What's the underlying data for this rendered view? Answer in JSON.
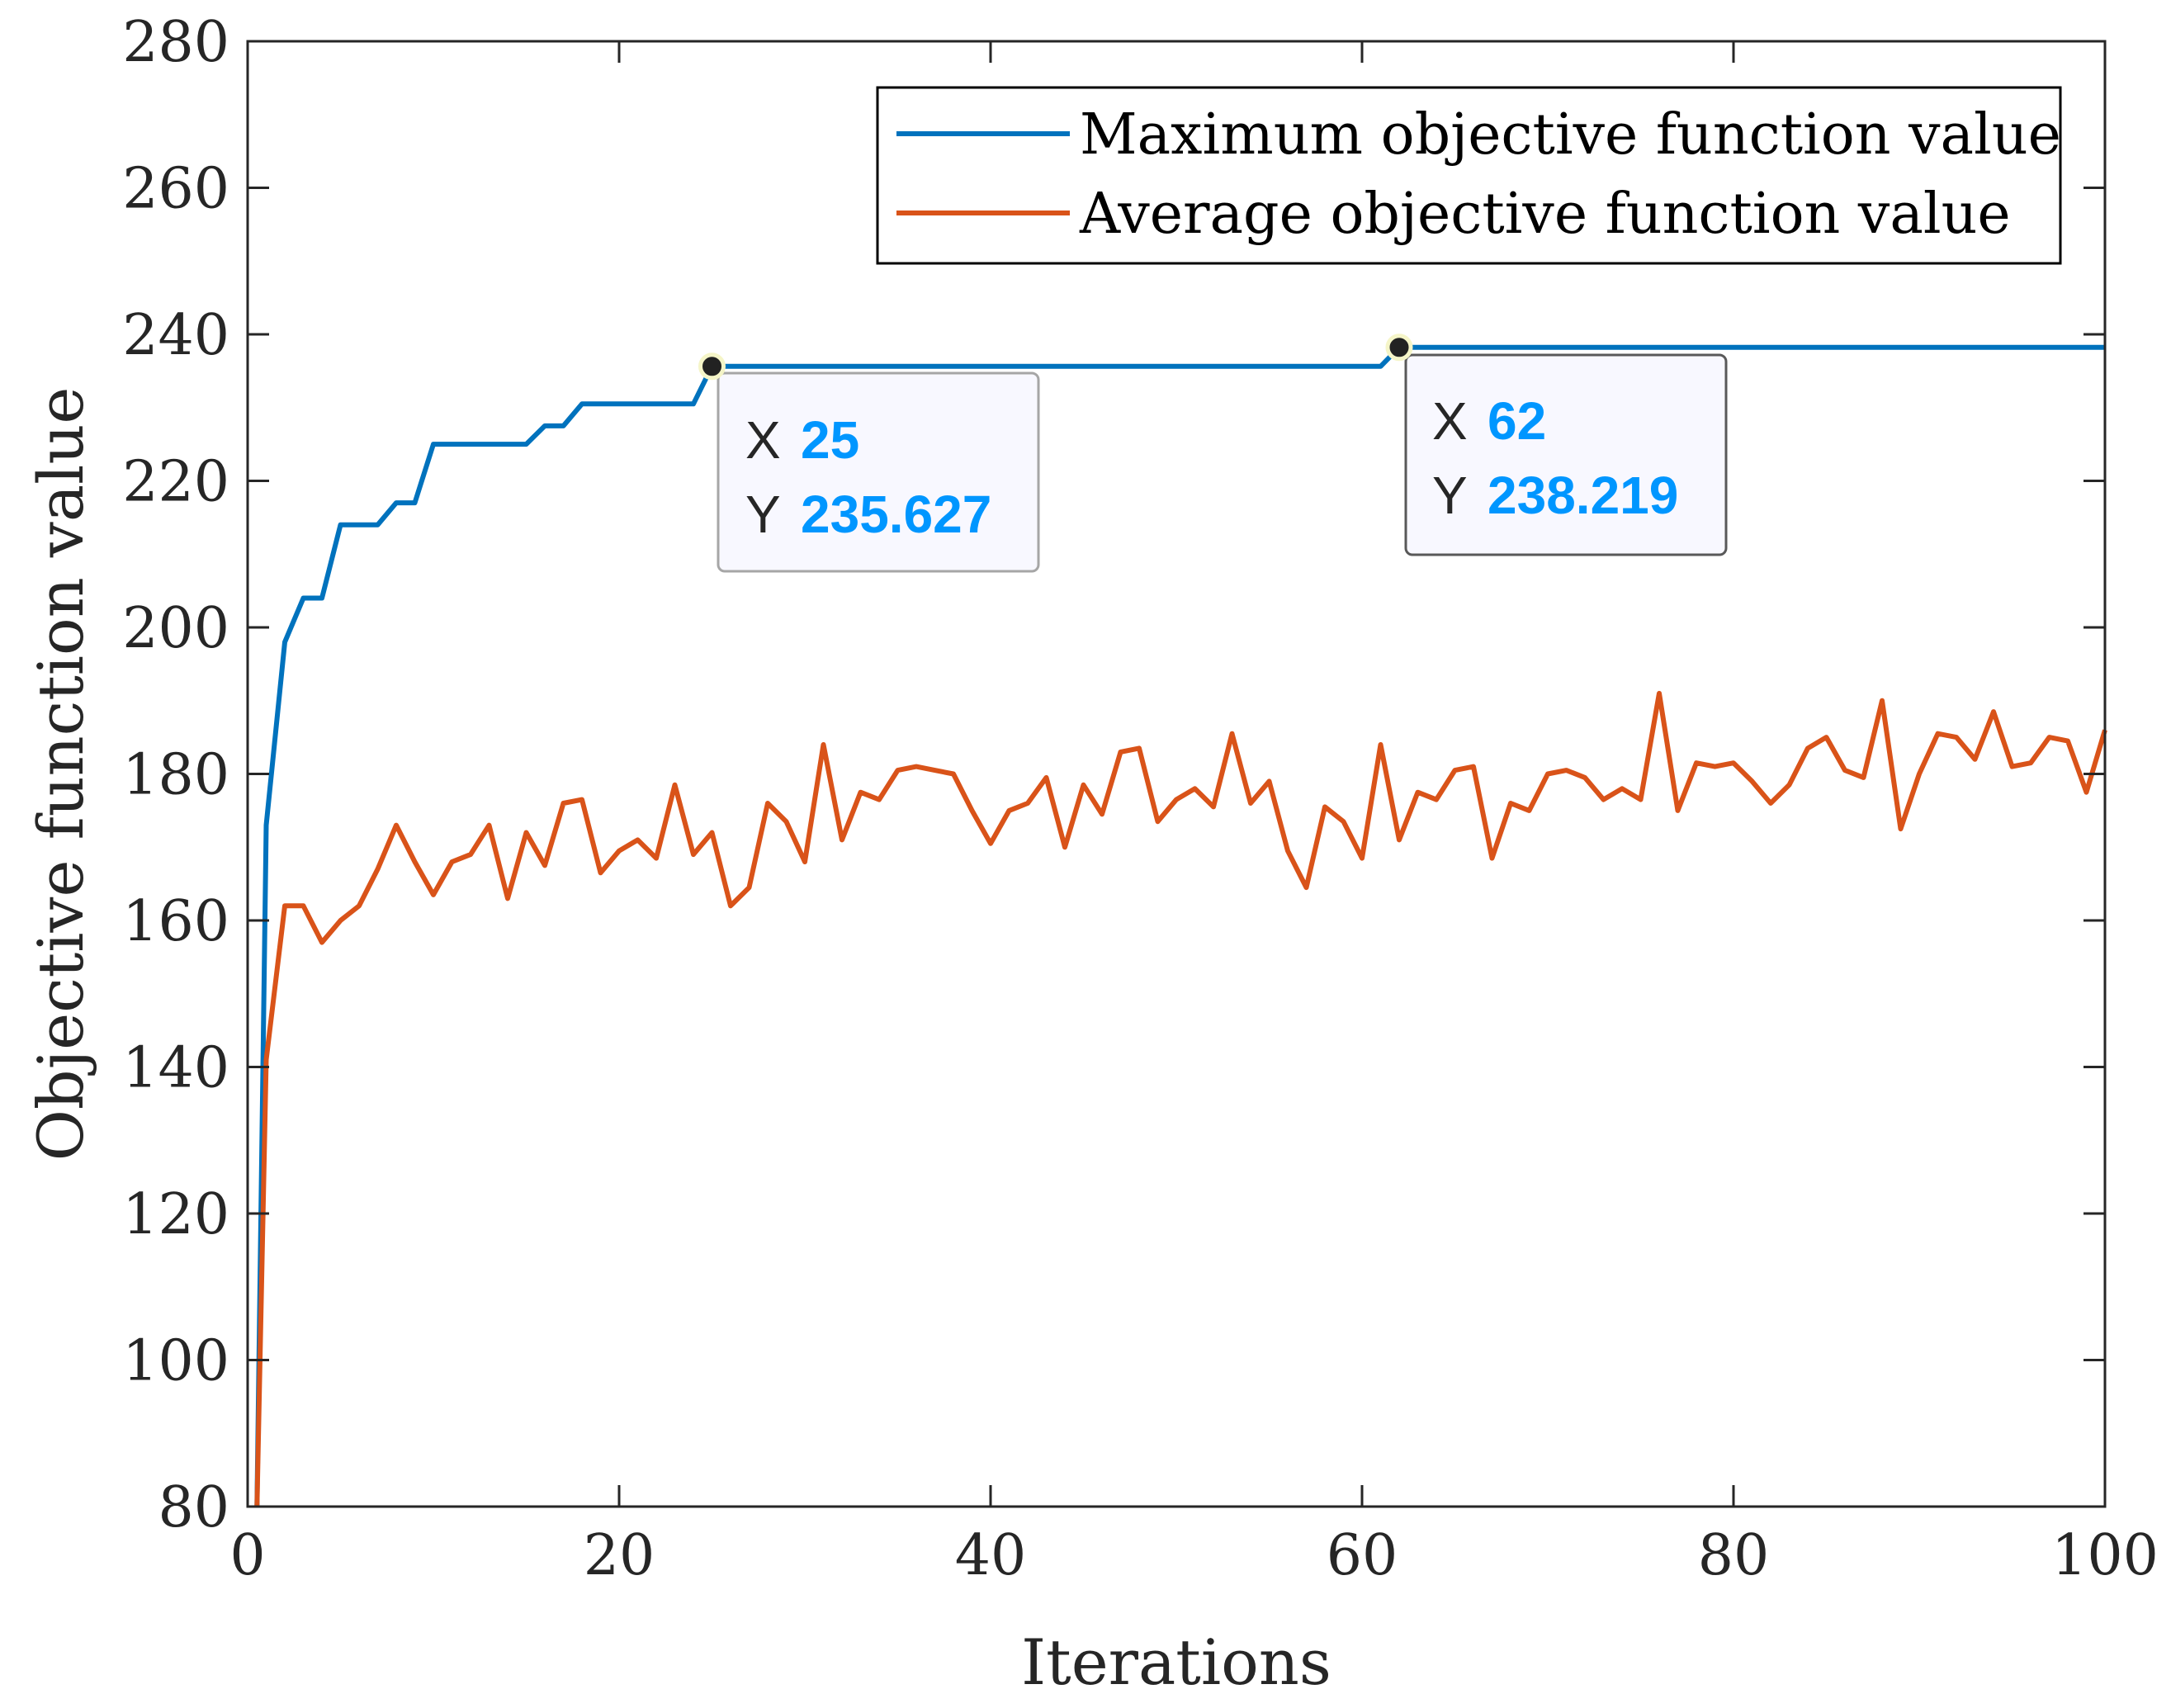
{
  "chart_data": {
    "type": "line",
    "title": "",
    "xlabel": "Iterations",
    "ylabel": "Objective function value",
    "xlim": [
      0,
      100
    ],
    "ylim": [
      80,
      280
    ],
    "xticks": [
      0,
      20,
      40,
      60,
      80,
      100
    ],
    "yticks": [
      80,
      100,
      120,
      140,
      160,
      180,
      200,
      220,
      240,
      260,
      280
    ],
    "grid": false,
    "legend_position": "top-right",
    "series": [
      {
        "name": "Maximum objective function value",
        "color": "#0072BD",
        "x": [
          0.5,
          1,
          2,
          3,
          4,
          5,
          6,
          7,
          8,
          9,
          10,
          11,
          12,
          13,
          14,
          15,
          16,
          17,
          18,
          19,
          20,
          21,
          22,
          23,
          24,
          25,
          30,
          40,
          50,
          61,
          62,
          70,
          80,
          90,
          100
        ],
        "y": [
          80,
          173,
          198,
          204,
          204,
          214,
          214,
          214,
          217,
          217,
          225,
          225,
          225,
          225,
          225,
          225,
          227.5,
          227.5,
          230.5,
          230.5,
          230.5,
          230.5,
          230.5,
          230.5,
          230.5,
          235.627,
          235.627,
          235.627,
          235.627,
          235.627,
          238.219,
          238.219,
          238.219,
          238.219,
          238.219
        ]
      },
      {
        "name": "Average objective function value",
        "color": "#D95319",
        "x": [
          0.5,
          1,
          2,
          3,
          4,
          5,
          6,
          7,
          8,
          9,
          10,
          11,
          12,
          13,
          14,
          15,
          16,
          17,
          18,
          19,
          20,
          21,
          22,
          23,
          24,
          25,
          26,
          27,
          28,
          29,
          30,
          31,
          32,
          33,
          34,
          35,
          36,
          37,
          38,
          39,
          40,
          41,
          42,
          43,
          44,
          45,
          46,
          47,
          48,
          49,
          50,
          51,
          52,
          53,
          54,
          55,
          56,
          57,
          58,
          59,
          60,
          61,
          62,
          63,
          64,
          65,
          66,
          67,
          68,
          69,
          70,
          71,
          72,
          73,
          74,
          75,
          76,
          77,
          78,
          79,
          80,
          81,
          82,
          83,
          84,
          85,
          86,
          87,
          88,
          89,
          90,
          91,
          92,
          93,
          94,
          95,
          96,
          97,
          98,
          99,
          100
        ],
        "y": [
          80,
          141,
          162,
          162,
          157,
          160,
          162,
          167,
          173,
          168,
          163.5,
          168,
          169,
          173,
          163,
          172,
          167.5,
          176,
          176.5,
          166.5,
          169.5,
          171,
          168.5,
          178.5,
          169,
          172,
          162,
          164.5,
          176,
          173.5,
          168,
          184,
          171,
          177.5,
          176.5,
          180.5,
          181,
          180.5,
          180,
          175,
          170.5,
          175,
          176,
          179.5,
          170,
          178.5,
          174.5,
          183,
          183.5,
          173.5,
          176.5,
          178,
          175.5,
          185.5,
          176,
          179,
          169.5,
          164.5,
          175.5,
          173.5,
          168.5,
          184,
          171,
          177.5,
          176.5,
          180.5,
          181,
          168.5,
          176,
          175,
          180,
          180.5,
          179.5,
          176.5,
          178,
          176.5,
          191,
          175,
          181.5,
          181,
          181.5,
          179,
          176,
          178.5,
          183.5,
          185,
          180.5,
          179.5,
          190,
          172.5,
          180,
          185.5,
          185,
          182,
          188.5,
          181,
          181.5,
          185,
          184.5,
          177.5,
          186
        ]
      }
    ],
    "datatips": [
      {
        "x_key": "X",
        "y_key": "Y",
        "x_value": "25",
        "y_value": "235.627",
        "x": 25,
        "y": 235.627
      },
      {
        "x_key": "X",
        "y_key": "Y",
        "x_value": "62",
        "y_value": "238.219",
        "x": 62,
        "y": 238.219
      }
    ],
    "datatip_value_color": "#0096FF"
  }
}
